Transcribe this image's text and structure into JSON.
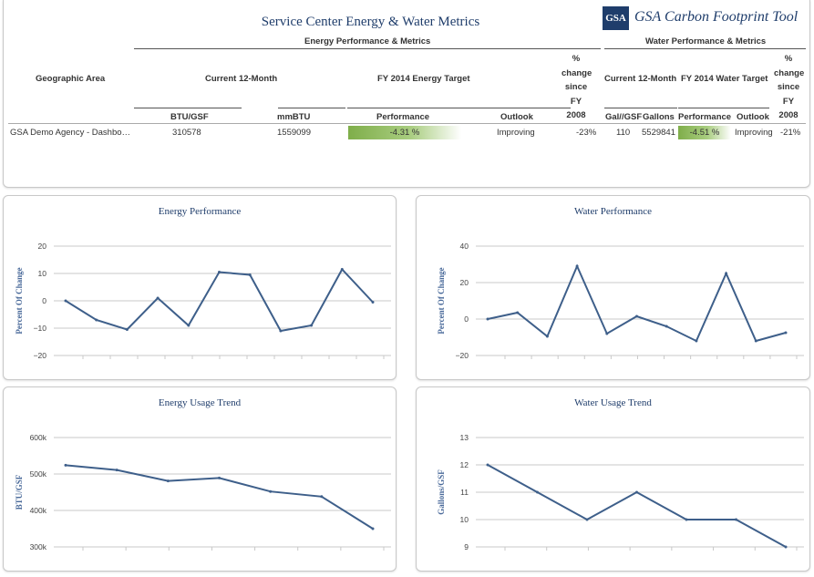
{
  "header": {
    "title": "Service Center Energy & Water Metrics",
    "logo_mark": "GSA",
    "logo_text": "GSA Carbon Footprint Tool"
  },
  "table": {
    "energy_group": "Energy Performance & Metrics",
    "water_group": "Water Performance & Metrics",
    "geo_header": "Geographic Area",
    "energy_current": "Current 12-Month",
    "energy_target": "FY 2014 Energy Target",
    "energy_pct_lines": [
      "%",
      "change",
      "since",
      "FY",
      "2008"
    ],
    "water_current": "Current 12-Month",
    "water_target": "FY 2014 Water Target",
    "water_pct_lines": [
      "%",
      "change",
      "since",
      "FY",
      "2008"
    ],
    "sub_headers": {
      "btu_gsf": "BTU/GSF",
      "mmbtu": "mmBTU",
      "performance": "Performance",
      "outlook": "Outlook",
      "gal_gsf": "Gal//GSF",
      "gallons": "Gallons",
      "w_performance": "Performance",
      "w_outlook": "Outlook"
    },
    "row": {
      "geo": "GSA Demo Agency - Dashbo…",
      "btu_gsf": "310578",
      "mmbtu": "1559099",
      "performance": "-4.31 %",
      "outlook": "Improving",
      "pct_change": "-23%",
      "gal_gsf": "110",
      "gallons": "5529841",
      "w_performance": "-4.51 %",
      "w_outlook": "Improving",
      "w_pct_change": "-21%"
    }
  },
  "chart_data": [
    {
      "type": "line",
      "title": "Energy Performance",
      "ylabel": "Percent Of Change",
      "xlabel": "",
      "ylim": [
        -20,
        20
      ],
      "yticks": [
        20,
        10,
        0,
        -10,
        -20
      ],
      "ytick_labels": [
        "20",
        "10",
        "0",
        "−10",
        "−20"
      ],
      "x": [
        1,
        2,
        3,
        4,
        5,
        6,
        7,
        8,
        9,
        10,
        11
      ],
      "values": [
        0,
        -7,
        -10.5,
        1,
        -9,
        10.5,
        9.5,
        -11,
        -9,
        11.5,
        -0.5
      ]
    },
    {
      "type": "line",
      "title": "Water Performance",
      "ylabel": "Percent Of Change",
      "xlabel": "",
      "ylim": [
        -20,
        40
      ],
      "yticks": [
        40,
        20,
        0,
        -20
      ],
      "ytick_labels": [
        "40",
        "20",
        "0",
        "−20"
      ],
      "x": [
        1,
        2,
        3,
        4,
        5,
        6,
        7,
        8,
        9,
        10,
        11
      ],
      "values": [
        0,
        3.5,
        -9.5,
        29,
        -8,
        1.5,
        -4,
        -12,
        25,
        -12,
        -7.5
      ]
    },
    {
      "type": "line",
      "title": "Energy Usage Trend",
      "ylabel": "BTU/GSF",
      "xlabel": "",
      "ylim": [
        300000,
        600000
      ],
      "yticks": [
        600000,
        500000,
        400000,
        300000
      ],
      "ytick_labels": [
        "600k",
        "500k",
        "400k",
        "300k"
      ],
      "x": [
        1,
        2,
        3,
        4,
        5,
        6,
        7
      ],
      "values": [
        524000,
        511000,
        481000,
        489000,
        452000,
        438000,
        350000
      ]
    },
    {
      "type": "line",
      "title": "Water Usage Trend",
      "ylabel": "Gallons/GSF",
      "xlabel": "",
      "ylim": [
        9,
        13
      ],
      "yticks": [
        13,
        12,
        11,
        10,
        9
      ],
      "ytick_labels": [
        "13",
        "12",
        "11",
        "10",
        "9"
      ],
      "x": [
        1,
        2,
        3,
        4,
        5,
        6,
        7
      ],
      "values": [
        12,
        11,
        10,
        11,
        10,
        10,
        9
      ]
    }
  ]
}
